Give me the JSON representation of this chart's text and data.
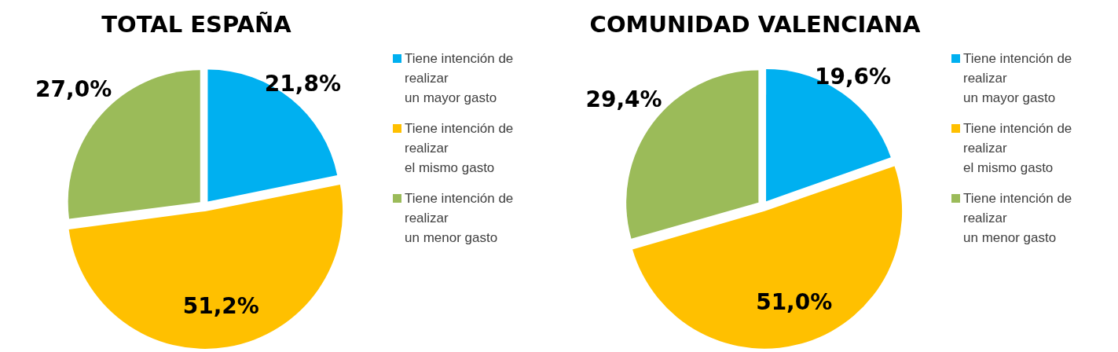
{
  "chart_data": [
    {
      "type": "pie",
      "title": "TOTAL ESPAÑA",
      "categories": [
        "Tiene intención de\nrealizar\nun mayor gasto",
        "Tiene intención de\nrealizar\nel mismo gasto",
        "Tiene intención de\nrealizar\nun menor gasto"
      ],
      "values": [
        21.8,
        51.2,
        27.0
      ],
      "colors": [
        "#00b0f0",
        "#ffc000",
        "#9bbb59"
      ],
      "value_labels": [
        "21,8%",
        "51,2%",
        "27,0%"
      ],
      "legend": "right"
    },
    {
      "type": "pie",
      "title": "COMUNIDAD VALENCIANA",
      "categories": [
        "Tiene intención de\nrealizar\nun mayor gasto",
        "Tiene intención de\nrealizar\nel mismo gasto",
        "Tiene intención de\nrealizar\nun menor gasto"
      ],
      "values": [
        19.6,
        51.0,
        29.4
      ],
      "colors": [
        "#00b0f0",
        "#ffc000",
        "#9bbb59"
      ],
      "value_labels": [
        "19,6%",
        "51,0%",
        "29,4%"
      ],
      "legend": "right"
    }
  ]
}
